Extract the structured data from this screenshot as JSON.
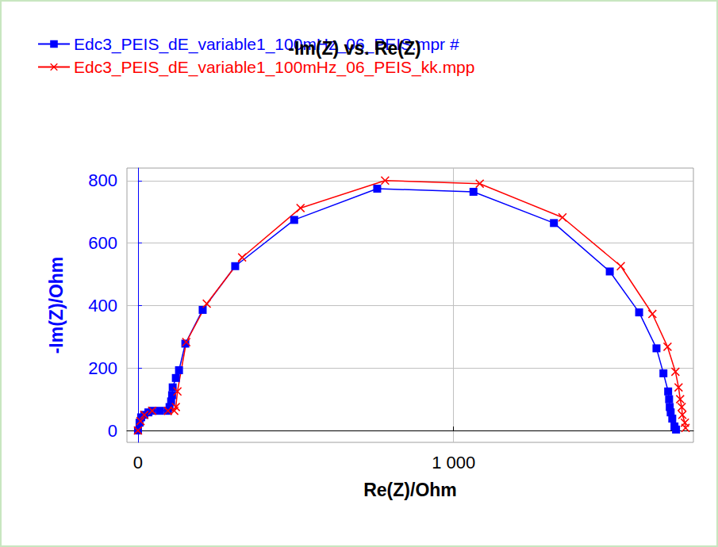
{
  "chart_data": {
    "type": "line",
    "title": "-Im(Z) vs. Re(Z)",
    "x_label": "Re(Z)/Ohm",
    "y_label": "-Im(Z)/Ohm",
    "xlim": [
      -35,
      1760
    ],
    "xticks": [
      0,
      {
        "value": 1000,
        "label": "1 000"
      }
    ],
    "ylim": [
      -38,
      840
    ],
    "yticks": [
      0,
      200,
      400,
      600,
      800
    ],
    "grid": true,
    "legend": "top-left",
    "series": [
      {
        "name": "Edc3_PEIS_dE_variable1_100mHz_06_PEIS.mpr #",
        "color": "#0000ff",
        "marker": "square",
        "x": [
          0,
          5,
          10,
          20,
          33,
          45,
          70,
          95,
          100,
          105,
          108,
          110,
          120,
          130,
          150,
          205,
          308,
          495,
          758,
          1063,
          1318,
          1495,
          1588,
          1643,
          1665,
          1680,
          1683,
          1685,
          1688,
          1693,
          1700,
          1705
        ],
        "values": [
          0,
          25,
          42,
          50,
          58,
          63,
          63,
          63,
          75,
          93,
          113,
          138,
          168,
          193,
          278,
          386,
          526,
          674,
          774,
          764,
          664,
          509,
          378,
          263,
          183,
          125,
          100,
          75,
          58,
          38,
          13,
          3
        ]
      },
      {
        "name": "Edc3_PEIS_dE_variable1_100mHz_06_PEIS_kk.mpp",
        "color": "#ff0000",
        "marker": "x",
        "x": [
          0,
          8,
          20,
          45,
          95,
          115,
          120,
          125,
          153,
          218,
          330,
          515,
          783,
          1083,
          1345,
          1530,
          1630,
          1678,
          1703,
          1713,
          1718,
          1723,
          1725,
          1733,
          1735
        ],
        "values": [
          0,
          30,
          50,
          63,
          63,
          63,
          75,
          125,
          283,
          406,
          554,
          712,
          800,
          790,
          682,
          526,
          373,
          268,
          188,
          138,
          100,
          75,
          50,
          25,
          8
        ]
      }
    ]
  }
}
